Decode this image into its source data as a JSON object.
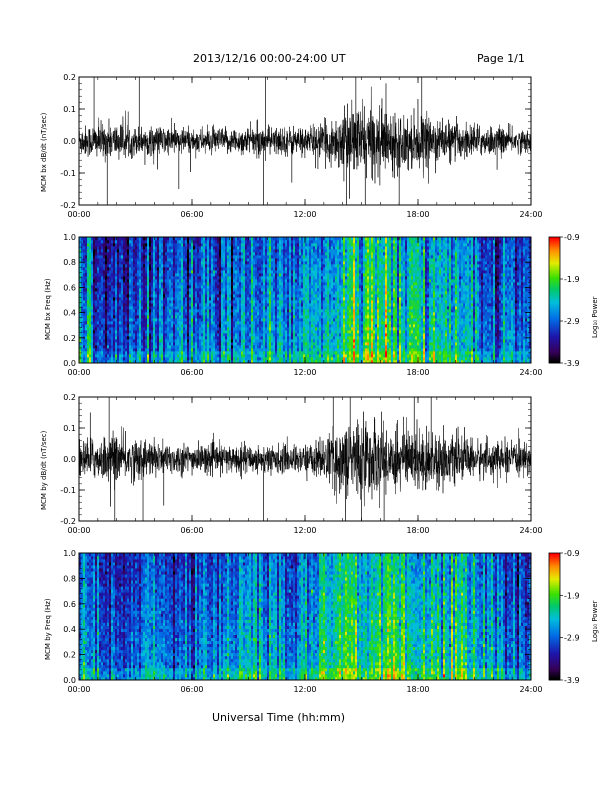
{
  "header": {
    "title": "2013/12/16  00:00-24:00 UT",
    "page": "Page 1/1"
  },
  "xaxis": {
    "title": "Universal Time (hh:mm)",
    "ticks": [
      "00:00",
      "06:00",
      "12:00",
      "18:00",
      "24:00"
    ],
    "range": [
      0,
      24
    ]
  },
  "colorbar": {
    "label": "Log₁₀ Power",
    "ticks": [
      "-0.9",
      "-1.9",
      "-2.9",
      "-3.9"
    ],
    "range": [
      -3.9,
      -0.9
    ]
  },
  "colors": {
    "trace": "#000000",
    "frame": "#000000"
  },
  "chart_data": [
    {
      "type": "line",
      "title": "",
      "ylabel": "MCM bx dB/dt (nT/sec)",
      "xlabel": "",
      "xlim": [
        0,
        24
      ],
      "ylim": [
        -0.2,
        0.2
      ],
      "yticks": [
        "0.2",
        "0.1",
        "0.0",
        "-0.1",
        "-0.2"
      ],
      "envelope": {
        "x": [
          0,
          1,
          2,
          3,
          4,
          5,
          6,
          7,
          8,
          9,
          10,
          11,
          12,
          13,
          14,
          15,
          16,
          17,
          18,
          19,
          20,
          21,
          22,
          23,
          24
        ],
        "amplitude": [
          0.04,
          0.05,
          0.05,
          0.04,
          0.04,
          0.04,
          0.035,
          0.035,
          0.035,
          0.04,
          0.04,
          0.04,
          0.04,
          0.05,
          0.08,
          0.1,
          0.09,
          0.08,
          0.07,
          0.06,
          0.05,
          0.045,
          0.04,
          0.035,
          0.03
        ]
      },
      "spikes": [
        [
          0.8,
          0.2
        ],
        [
          1.5,
          -0.2
        ],
        [
          3.2,
          0.2
        ],
        [
          5.3,
          -0.15
        ],
        [
          9.8,
          -0.2
        ],
        [
          9.9,
          0.2
        ],
        [
          11.3,
          -0.13
        ],
        [
          14.2,
          -0.2
        ],
        [
          14.7,
          0.2
        ],
        [
          15.2,
          -0.2
        ],
        [
          16.3,
          0.18
        ],
        [
          17.0,
          -0.2
        ],
        [
          18.2,
          0.2
        ]
      ]
    },
    {
      "type": "heatmap",
      "title": "",
      "ylabel": "MCM bx Freq (Hz)",
      "xlabel": "",
      "xlim": [
        0,
        24
      ],
      "ylim": [
        0,
        1.0
      ],
      "yticks": [
        "1.0",
        "0.8",
        "0.6",
        "0.4",
        "0.2",
        "0.0"
      ],
      "zlim": [
        -3.9,
        -0.9
      ],
      "power_profile": {
        "x": [
          0,
          1,
          2,
          3,
          4,
          5,
          6,
          7,
          8,
          9,
          10,
          11,
          12,
          13,
          14,
          15,
          16,
          17,
          18,
          19,
          20,
          21,
          22,
          23,
          24
        ],
        "log_power": [
          -2.5,
          -3.0,
          -3.1,
          -2.9,
          -2.7,
          -2.7,
          -2.8,
          -2.8,
          -2.7,
          -2.6,
          -2.6,
          -2.7,
          -2.5,
          -2.3,
          -2.1,
          -2.0,
          -2.0,
          -2.1,
          -2.2,
          -2.3,
          -2.4,
          -2.5,
          -2.7,
          -2.8,
          -2.8
        ]
      }
    },
    {
      "type": "line",
      "title": "",
      "ylabel": "MCM by dB/dt (nT/sec)",
      "xlabel": "",
      "xlim": [
        0,
        24
      ],
      "ylim": [
        -0.2,
        0.2
      ],
      "yticks": [
        "0.2",
        "0.1",
        "0.0",
        "-0.1",
        "-0.2"
      ],
      "envelope": {
        "x": [
          0,
          1,
          2,
          3,
          4,
          5,
          6,
          7,
          8,
          9,
          10,
          11,
          12,
          13,
          14,
          15,
          16,
          17,
          18,
          19,
          20,
          21,
          22,
          23,
          24
        ],
        "amplitude": [
          0.05,
          0.06,
          0.07,
          0.06,
          0.05,
          0.045,
          0.04,
          0.04,
          0.04,
          0.04,
          0.04,
          0.04,
          0.04,
          0.06,
          0.1,
          0.12,
          0.1,
          0.09,
          0.09,
          0.08,
          0.06,
          0.055,
          0.05,
          0.045,
          0.04
        ]
      },
      "spikes": [
        [
          0.6,
          0.15
        ],
        [
          1.6,
          0.2
        ],
        [
          1.9,
          -0.2
        ],
        [
          3.4,
          -0.2
        ],
        [
          4.5,
          -0.15
        ],
        [
          9.8,
          -0.2
        ],
        [
          13.5,
          0.2
        ],
        [
          14.4,
          0.2
        ],
        [
          15.0,
          -0.2
        ],
        [
          16.2,
          -0.2
        ],
        [
          17.8,
          0.2
        ],
        [
          18.7,
          0.2
        ]
      ]
    },
    {
      "type": "heatmap",
      "title": "",
      "ylabel": "MCM by Freq (Hz)",
      "xlabel": "",
      "xlim": [
        0,
        24
      ],
      "ylim": [
        0,
        1.0
      ],
      "yticks": [
        "1.0",
        "0.8",
        "0.6",
        "0.4",
        "0.2",
        "0.0"
      ],
      "zlim": [
        -3.9,
        -0.9
      ],
      "power_profile": {
        "x": [
          0,
          1,
          2,
          3,
          4,
          5,
          6,
          7,
          8,
          9,
          10,
          11,
          12,
          13,
          14,
          15,
          16,
          17,
          18,
          19,
          20,
          21,
          22,
          23,
          24
        ],
        "log_power": [
          -2.5,
          -2.9,
          -3.0,
          -2.9,
          -2.7,
          -2.7,
          -2.8,
          -2.8,
          -2.7,
          -2.6,
          -2.6,
          -2.7,
          -2.5,
          -2.3,
          -2.1,
          -2.0,
          -2.0,
          -2.1,
          -2.2,
          -2.3,
          -2.4,
          -2.5,
          -2.7,
          -2.8,
          -2.8
        ]
      }
    }
  ]
}
